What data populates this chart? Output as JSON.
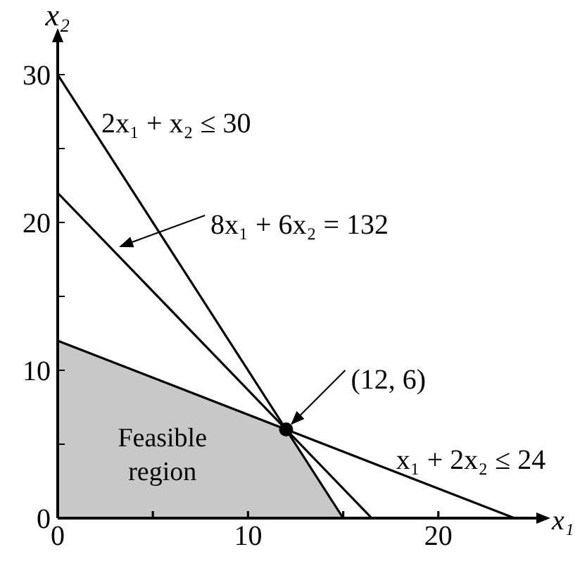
{
  "chart_data": {
    "type": "line",
    "xlabel": "x₁",
    "ylabel": "x₂",
    "xlim": [
      0,
      25
    ],
    "ylim": [
      0,
      32
    ],
    "xticks": [
      0,
      {
        "value": 5,
        "label": null
      },
      10,
      {
        "value": 15,
        "label": null
      },
      20
    ],
    "yticks": [
      0,
      {
        "value": 5,
        "label": null
      },
      10,
      {
        "value": 15,
        "label": null
      },
      20,
      {
        "value": 25,
        "label": null
      },
      30
    ],
    "series": [
      {
        "type": "area",
        "color": "#c8c8c8",
        "x": [
          0,
          12,
          15
        ],
        "values": [
          12,
          6,
          0
        ]
      },
      {
        "color": "#000000",
        "x": [
          0,
          15
        ],
        "values": [
          30,
          0
        ]
      },
      {
        "color": "#000000",
        "x": [
          0,
          16.5
        ],
        "values": [
          22,
          0
        ]
      },
      {
        "color": "#000000",
        "x": [
          0,
          24
        ],
        "values": [
          12,
          0
        ]
      },
      {
        "type": "scatter",
        "color": "#000000",
        "x": [
          12
        ],
        "values": [
          6
        ]
      }
    ],
    "annotations": [
      {
        "text": "2x₁ + x₂ ≤ 30",
        "x": 2,
        "y": 26
      },
      {
        "text": "8x₁ + 6x₂ = 132",
        "x": 3,
        "y": 18
      },
      {
        "text": "(12, 6)",
        "x": 12,
        "y": 6
      },
      {
        "text": "x₁ + 2x₂ ≤ 24",
        "x": 20,
        "y": 2
      },
      "Feasible region"
    ]
  }
}
